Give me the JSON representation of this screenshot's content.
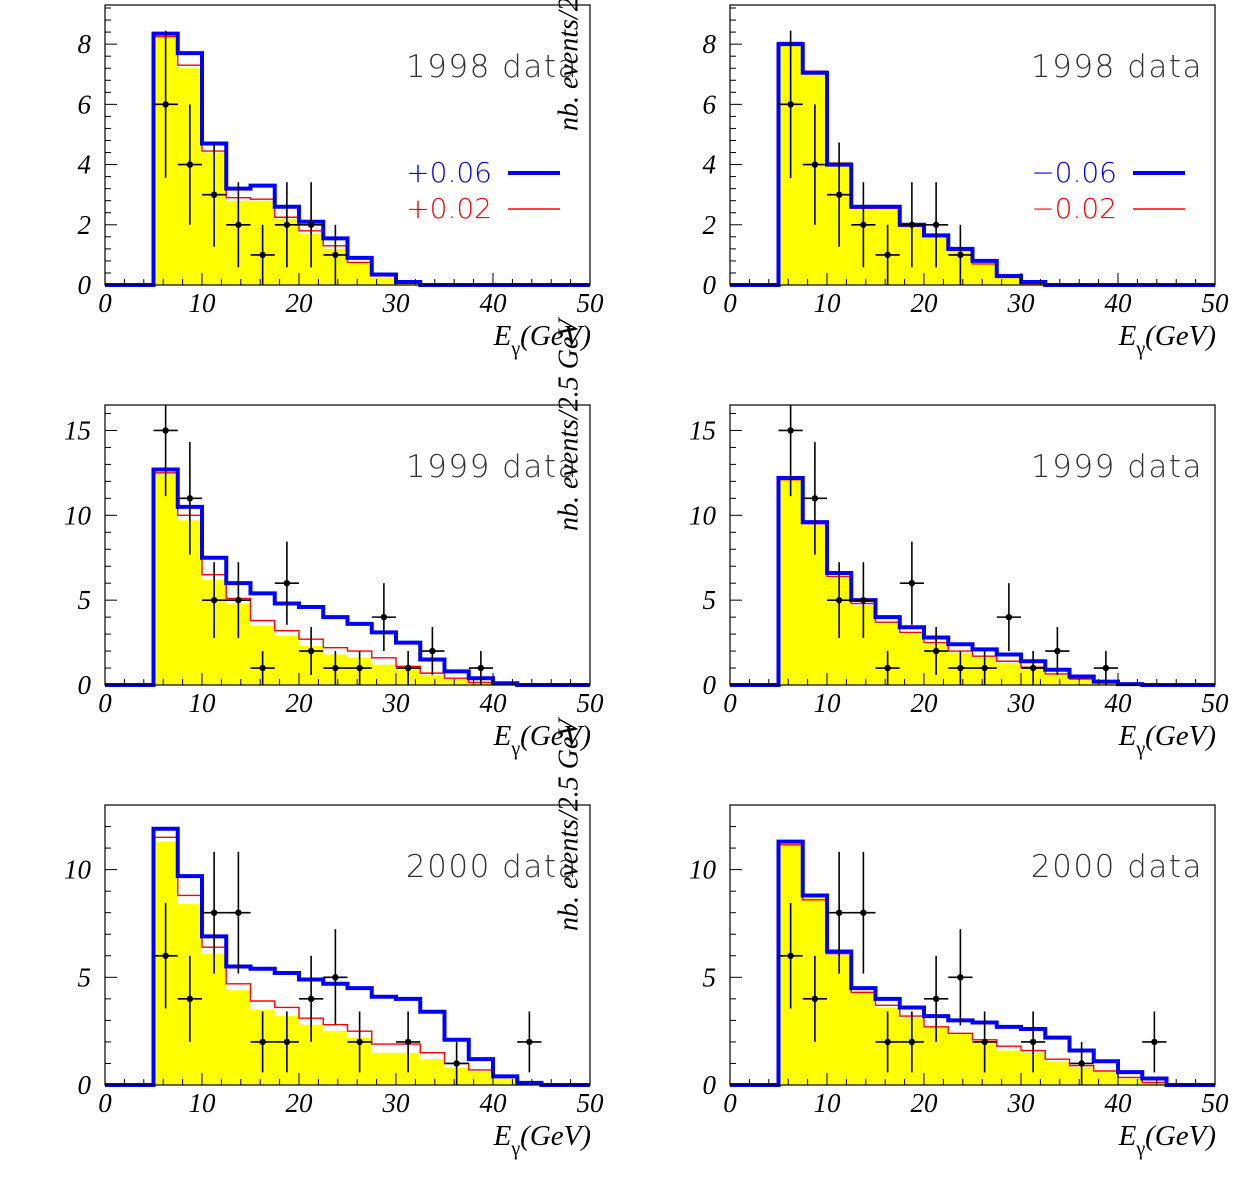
{
  "chart_data": [
    {
      "type": "step-histogram",
      "annotation": "1998 data",
      "xlabel_main": "E",
      "xlabel_sub": "γ",
      "xlabel_rest": "(GeV)",
      "ylabel": "nb. events/2.5 GeV",
      "xlim": [
        0,
        50
      ],
      "ylim": [
        0,
        9.3
      ],
      "xticks": [
        0,
        10,
        20,
        30,
        40,
        50
      ],
      "yticks": [
        0,
        2,
        4,
        6,
        8
      ],
      "bin_edges": [
        0,
        2.5,
        5,
        7.5,
        10,
        12.5,
        15,
        17.5,
        20,
        22.5,
        25,
        27.5,
        30,
        32.5,
        35,
        37.5,
        40,
        42.5,
        45,
        47.5,
        50
      ],
      "filled": [
        0,
        0,
        8.2,
        7.2,
        4.4,
        2.8,
        2.8,
        2.2,
        1.7,
        1.2,
        0.7,
        0.25,
        0.05,
        0,
        0,
        0,
        0,
        0,
        0,
        0
      ],
      "series": [
        {
          "name": "+0.06",
          "color": "#0000ff",
          "width": 4,
          "values": [
            0,
            0,
            8.35,
            7.7,
            4.7,
            3.2,
            3.3,
            2.6,
            2.1,
            1.55,
            0.9,
            0.35,
            0.1,
            0,
            0,
            0,
            0,
            0,
            0,
            0
          ]
        },
        {
          "name": "+0.02",
          "color": "#ff0000",
          "width": 1.4,
          "values": [
            0,
            0,
            8.25,
            7.3,
            4.45,
            2.9,
            2.85,
            2.25,
            1.8,
            1.3,
            0.75,
            0.3,
            0.07,
            0,
            0,
            0,
            0,
            0,
            0,
            0
          ]
        }
      ],
      "points": {
        "x": [
          6.25,
          8.75,
          11.25,
          13.75,
          16.25,
          18.75,
          21.25,
          23.75
        ],
        "y": [
          6,
          4,
          3,
          2,
          1,
          2,
          2,
          1
        ]
      }
    },
    {
      "type": "step-histogram",
      "annotation": "1998 data",
      "xlabel_main": "E",
      "xlabel_sub": "γ",
      "xlabel_rest": "(GeV)",
      "ylabel": "nb. events/2.5 GeV",
      "xlim": [
        0,
        50
      ],
      "ylim": [
        0,
        9.3
      ],
      "xticks": [
        0,
        10,
        20,
        30,
        40,
        50
      ],
      "yticks": [
        0,
        2,
        4,
        6,
        8
      ],
      "bin_edges": [
        0,
        2.5,
        5,
        7.5,
        10,
        12.5,
        15,
        17.5,
        20,
        22.5,
        25,
        27.5,
        30,
        32.5,
        35,
        37.5,
        40,
        42.5,
        45,
        47.5,
        50
      ],
      "filled": [
        0,
        0,
        8.1,
        7.1,
        4.1,
        2.6,
        2.6,
        2.0,
        1.6,
        1.2,
        0.7,
        0.25,
        0.05,
        0,
        0,
        0,
        0,
        0,
        0,
        0
      ],
      "series": [
        {
          "name": "−0.06",
          "color": "#0000ff",
          "width": 4,
          "values": [
            0,
            0,
            8.0,
            7.05,
            4.0,
            2.6,
            2.6,
            2.0,
            1.65,
            1.2,
            0.8,
            0.3,
            0.1,
            0,
            0,
            0,
            0,
            0,
            0,
            0
          ]
        },
        {
          "name": "−0.02",
          "color": "#ff0000",
          "width": 1.4,
          "values": [
            0,
            0,
            8.05,
            7.1,
            4.05,
            2.55,
            2.55,
            1.95,
            1.6,
            1.15,
            0.7,
            0.25,
            0.05,
            0,
            0,
            0,
            0,
            0,
            0,
            0
          ]
        }
      ],
      "points": {
        "x": [
          6.25,
          8.75,
          11.25,
          13.75,
          16.25,
          18.75,
          21.25,
          23.75
        ],
        "y": [
          6,
          4,
          3,
          2,
          1,
          2,
          2,
          1
        ]
      }
    },
    {
      "type": "step-histogram",
      "annotation": "1999 data",
      "xlabel_main": "E",
      "xlabel_sub": "γ",
      "xlabel_rest": "(GeV)",
      "ylabel": "nb. events/2.5 GeV",
      "xlim": [
        0,
        50
      ],
      "ylim": [
        0,
        16.5
      ],
      "xticks": [
        0,
        10,
        20,
        30,
        40,
        50
      ],
      "yticks": [
        0,
        5,
        10,
        15
      ],
      "bin_edges": [
        0,
        2.5,
        5,
        7.5,
        10,
        12.5,
        15,
        17.5,
        20,
        22.5,
        25,
        27.5,
        30,
        32.5,
        35,
        37.5,
        40,
        42.5,
        45,
        47.5,
        50
      ],
      "filled": [
        0,
        0,
        12.4,
        9.7,
        6.2,
        4.8,
        3.5,
        2.9,
        2.3,
        1.8,
        1.6,
        1.2,
        0.9,
        0.6,
        0.3,
        0.1,
        0,
        0,
        0,
        0
      ],
      "series": [
        {
          "name": "",
          "color": "#0000ff",
          "width": 4,
          "values": [
            0,
            0,
            12.7,
            10.5,
            7.5,
            6.0,
            5.4,
            4.8,
            4.6,
            4.0,
            3.6,
            3.1,
            2.5,
            1.5,
            0.8,
            0.4,
            0.1,
            0,
            0,
            0
          ]
        },
        {
          "name": "",
          "color": "#ff0000",
          "width": 1.4,
          "values": [
            0,
            0,
            12.5,
            10.0,
            6.5,
            5.1,
            3.8,
            3.2,
            2.7,
            2.2,
            2.0,
            1.6,
            1.1,
            0.7,
            0.4,
            0.15,
            0.05,
            0,
            0,
            0
          ]
        }
      ],
      "points": {
        "x": [
          6.25,
          8.75,
          11.25,
          13.75,
          16.25,
          18.75,
          21.25,
          23.75,
          26.25,
          28.75,
          31.25,
          33.75,
          38.75
        ],
        "y": [
          15,
          11,
          5,
          5,
          1,
          6,
          2,
          1,
          1,
          4,
          1,
          2,
          1
        ]
      }
    },
    {
      "type": "step-histogram",
      "annotation": "1999 data",
      "xlabel_main": "E",
      "xlabel_sub": "γ",
      "xlabel_rest": "(GeV)",
      "ylabel": "nb. events/2.5 GeV",
      "xlim": [
        0,
        50
      ],
      "ylim": [
        0,
        16.5
      ],
      "xticks": [
        0,
        10,
        20,
        30,
        40,
        50
      ],
      "yticks": [
        0,
        5,
        10,
        15
      ],
      "bin_edges": [
        0,
        2.5,
        5,
        7.5,
        10,
        12.5,
        15,
        17.5,
        20,
        22.5,
        25,
        27.5,
        30,
        32.5,
        35,
        37.5,
        40,
        42.5,
        45,
        47.5,
        50
      ],
      "filled": [
        0,
        0,
        12.1,
        9.4,
        6.3,
        4.7,
        3.6,
        3.0,
        2.4,
        1.9,
        1.6,
        1.3,
        1.0,
        0.6,
        0.3,
        0.1,
        0,
        0,
        0,
        0
      ],
      "series": [
        {
          "name": "",
          "color": "#0000ff",
          "width": 4,
          "values": [
            0,
            0,
            12.2,
            9.6,
            6.6,
            5.0,
            4.0,
            3.4,
            2.8,
            2.4,
            2.1,
            1.8,
            1.4,
            0.9,
            0.5,
            0.2,
            0.05,
            0,
            0,
            0
          ]
        },
        {
          "name": "",
          "color": "#ff0000",
          "width": 1.4,
          "values": [
            0,
            0,
            12.1,
            9.5,
            6.4,
            4.8,
            3.7,
            3.1,
            2.5,
            2.0,
            1.7,
            1.4,
            1.05,
            0.65,
            0.35,
            0.12,
            0.03,
            0,
            0,
            0
          ]
        }
      ],
      "points": {
        "x": [
          6.25,
          8.75,
          11.25,
          13.75,
          16.25,
          18.75,
          21.25,
          23.75,
          26.25,
          28.75,
          31.25,
          33.75,
          38.75
        ],
        "y": [
          15,
          11,
          5,
          5,
          1,
          6,
          2,
          1,
          1,
          4,
          1,
          2,
          1
        ]
      }
    },
    {
      "type": "step-histogram",
      "annotation": "2000 data",
      "xlabel_main": "E",
      "xlabel_sub": "γ",
      "xlabel_rest": "(GeV)",
      "ylabel": "nb. events/2.5 GeV",
      "xlim": [
        0,
        50
      ],
      "ylim": [
        0,
        13
      ],
      "xticks": [
        0,
        10,
        20,
        30,
        40,
        50
      ],
      "yticks": [
        0,
        5,
        10
      ],
      "bin_edges": [
        0,
        2.5,
        5,
        7.5,
        10,
        12.5,
        15,
        17.5,
        20,
        22.5,
        25,
        27.5,
        30,
        32.5,
        35,
        37.5,
        40,
        42.5,
        45,
        47.5,
        50
      ],
      "filled": [
        0,
        0,
        11.3,
        8.4,
        6.1,
        4.4,
        3.5,
        3.2,
        2.8,
        2.5,
        2.2,
        1.5,
        1.5,
        1.2,
        0.8,
        0.6,
        0.3,
        0.1,
        0,
        0
      ],
      "series": [
        {
          "name": "",
          "color": "#0000ff",
          "width": 4,
          "values": [
            0,
            0,
            11.9,
            9.7,
            6.9,
            5.5,
            5.4,
            5.2,
            4.9,
            4.7,
            4.5,
            4.1,
            4.0,
            3.4,
            2.1,
            1.2,
            0.4,
            0.1,
            0,
            0
          ]
        },
        {
          "name": "",
          "color": "#ff0000",
          "width": 1.4,
          "values": [
            0,
            0,
            11.5,
            8.8,
            6.4,
            4.7,
            3.9,
            3.6,
            3.1,
            2.8,
            2.5,
            1.9,
            1.9,
            1.5,
            1.0,
            0.7,
            0.4,
            0.15,
            0,
            0
          ]
        }
      ],
      "points": {
        "x": [
          6.25,
          8.75,
          11.25,
          13.75,
          16.25,
          18.75,
          21.25,
          23.75,
          26.25,
          31.25,
          36.25,
          43.75
        ],
        "y": [
          6,
          4,
          8,
          8,
          2,
          2,
          4,
          5,
          2,
          2,
          1,
          2
        ]
      }
    },
    {
      "type": "step-histogram",
      "annotation": "2000 data",
      "xlabel_main": "E",
      "xlabel_sub": "γ",
      "xlabel_rest": "(GeV)",
      "ylabel": "nb. events/2.5 GeV",
      "xlim": [
        0,
        50
      ],
      "ylim": [
        0,
        13
      ],
      "xticks": [
        0,
        10,
        20,
        30,
        40,
        50
      ],
      "yticks": [
        0,
        5,
        10
      ],
      "bin_edges": [
        0,
        2.5,
        5,
        7.5,
        10,
        12.5,
        15,
        17.5,
        20,
        22.5,
        25,
        27.5,
        30,
        32.5,
        35,
        37.5,
        40,
        42.5,
        45,
        47.5,
        50
      ],
      "filled": [
        0,
        0,
        11.1,
        8.7,
        6.0,
        4.3,
        3.6,
        3.1,
        2.7,
        2.4,
        2.0,
        1.6,
        1.5,
        1.1,
        0.8,
        0.6,
        0.3,
        0.1,
        0,
        0
      ],
      "series": [
        {
          "name": "",
          "color": "#0000ff",
          "width": 4,
          "values": [
            0,
            0,
            11.3,
            8.8,
            6.2,
            4.5,
            4.0,
            3.6,
            3.2,
            3.0,
            2.9,
            2.7,
            2.6,
            2.2,
            1.6,
            1.1,
            0.6,
            0.3,
            0,
            0
          ]
        },
        {
          "name": "",
          "color": "#ff0000",
          "width": 1.4,
          "values": [
            0,
            0,
            11.15,
            8.6,
            6.1,
            4.3,
            3.7,
            3.2,
            2.7,
            2.4,
            2.1,
            1.8,
            1.6,
            1.2,
            0.9,
            0.65,
            0.35,
            0.12,
            0,
            0
          ]
        }
      ],
      "points": {
        "x": [
          6.25,
          8.75,
          11.25,
          13.75,
          16.25,
          18.75,
          21.25,
          23.75,
          26.25,
          31.25,
          36.25,
          43.75
        ],
        "y": [
          6,
          4,
          8,
          8,
          2,
          2,
          4,
          5,
          2,
          2,
          1,
          2
        ]
      }
    }
  ],
  "style": {
    "fill_color": "#ffff00",
    "point_color": "#000000",
    "annotation_color": "#333333"
  }
}
